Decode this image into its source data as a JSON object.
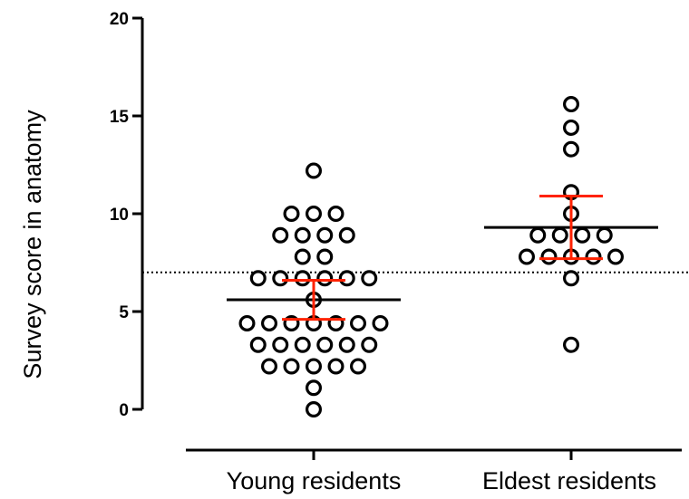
{
  "chart_data": {
    "type": "scatter",
    "subtype": "dot-plot",
    "title": "",
    "ylabel": "Survey score in anatomy",
    "xlabel": "",
    "ylim": [
      0,
      20
    ],
    "yticks": [
      0,
      5,
      10,
      15,
      20
    ],
    "ytick_labels": [
      "0",
      "5",
      "10",
      "15",
      "20"
    ],
    "reference_line": {
      "y": 7,
      "style": "dotted"
    },
    "categories": [
      "Young residents",
      "Eldest residents"
    ],
    "groups": [
      {
        "label": "Young residents",
        "mean": 5.6,
        "error_low": 4.6,
        "error_high": 6.6,
        "rows": [
          {
            "y": 12.2,
            "count": 1
          },
          {
            "y": 10.0,
            "count": 3
          },
          {
            "y": 8.9,
            "count": 4
          },
          {
            "y": 7.8,
            "count": 2
          },
          {
            "y": 6.7,
            "count": 6
          },
          {
            "y": 5.6,
            "count": 1
          },
          {
            "y": 4.4,
            "count": 7
          },
          {
            "y": 3.3,
            "count": 6
          },
          {
            "y": 2.2,
            "count": 5
          },
          {
            "y": 1.1,
            "count": 1
          },
          {
            "y": 0.0,
            "count": 1
          }
        ]
      },
      {
        "label": "Eldest residents",
        "mean": 9.3,
        "error_low": 7.7,
        "error_high": 10.9,
        "rows": [
          {
            "y": 15.6,
            "count": 1
          },
          {
            "y": 14.4,
            "count": 1
          },
          {
            "y": 13.3,
            "count": 1
          },
          {
            "y": 11.1,
            "count": 1
          },
          {
            "y": 10.0,
            "count": 1
          },
          {
            "y": 8.9,
            "count": 4
          },
          {
            "y": 7.8,
            "count": 5
          },
          {
            "y": 6.7,
            "count": 1
          },
          {
            "y": 3.3,
            "count": 1
          }
        ]
      }
    ],
    "colors": {
      "points": "#000000",
      "mean_line": "#000000",
      "error_bar": "#ff2200",
      "reference_line": "#000000"
    }
  }
}
